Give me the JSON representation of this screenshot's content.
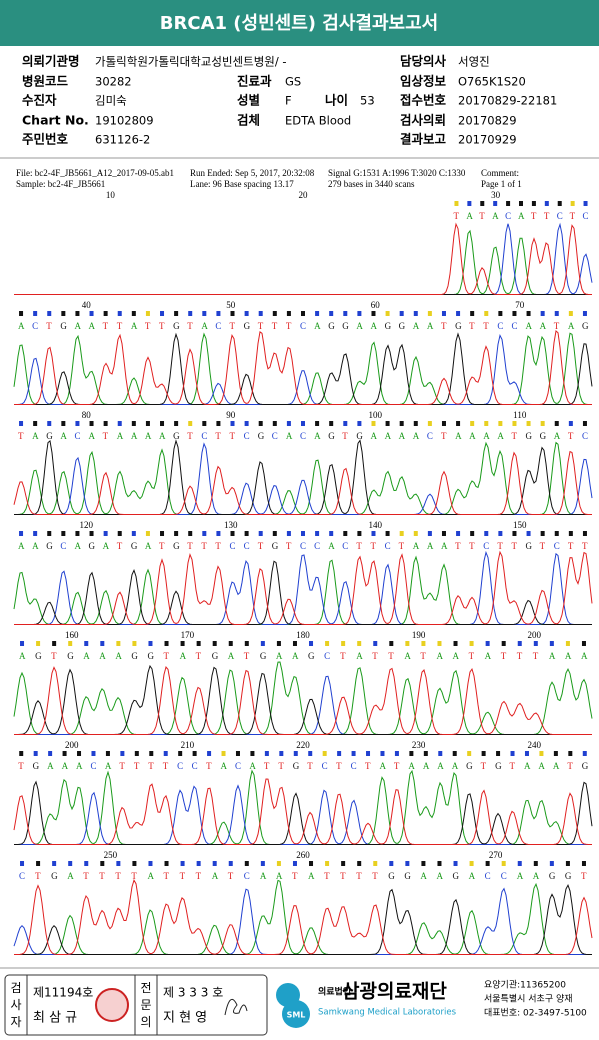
{
  "header": {
    "title": "BRCA1 (성빈센트) 검사결과보고서"
  },
  "info": [
    {
      "label": "의뢰기관명",
      "value": "가톨릭학원가톨릭대학교성빈센트병원/ -"
    },
    {
      "label": "병원코드",
      "value": "30282"
    },
    {
      "label": "진료과",
      "value": "GS"
    },
    {
      "label": "수진자",
      "value": "김미숙"
    },
    {
      "label": "성별",
      "value": "F"
    },
    {
      "label": "나이",
      "value": "53"
    },
    {
      "label": "Chart No.",
      "value": "19102809"
    },
    {
      "label": "검체",
      "value": "EDTA Blood"
    },
    {
      "label": "주민번호",
      "value": "631126-2"
    },
    {
      "label": "담당의사",
      "value": "서영진"
    },
    {
      "label": "임상정보",
      "value": "O765K1S20"
    },
    {
      "label": "접수번호",
      "value": "20170829-22181"
    },
    {
      "label": "검사의뢰",
      "value": "20170829"
    },
    {
      "label": "결과보고",
      "value": "20170929"
    }
  ],
  "chromatogram": {
    "file": "File: bc2-4F_JB5661_A12_2017-09-05.ab1",
    "sample": "Sample: bc2-4F_JB5661",
    "run_ended": "Run Ended: Sep 5, 2017, 20:32:08",
    "lane": "Lane: 96   Base spacing 13.17",
    "signal": "Signal G:1531 A:1996 T:3020 C:1330",
    "bases": "279 bases in 3440 scans",
    "comment": "Comment:",
    "page": "Page 1 of 1",
    "rows": [
      {
        "positions": [
          10,
          20,
          30
        ],
        "sequence": "TATACATTCTC"
      },
      {
        "positions": [
          40,
          50,
          60,
          70
        ],
        "sequence": "ACTGAATTATTGTACTGTTTCAGGAAGGAATGTTCCAATAG"
      },
      {
        "positions": [
          80,
          90,
          100,
          110
        ],
        "sequence": "TAGACATAAAAGTCTTCGCACAGTGAAAACTAAAATGGATC"
      },
      {
        "positions": [
          120,
          130,
          140,
          150
        ],
        "sequence": "AAGCAGATGATGTTTCCTGTCCACTTCTAAATTCTTGTCTT"
      },
      {
        "positions": [
          160,
          170,
          180,
          190,
          200
        ],
        "sequence": "AGTGAAAGGTATGATGAAGCTATTATAATATTTAAA"
      },
      {
        "positions": [
          200,
          210,
          220,
          230,
          240
        ],
        "sequence": "TGAAACATTTTCCTACATTGTCTCTATAAAAGTGTAAATG"
      },
      {
        "positions": [
          250,
          260,
          270
        ],
        "sequence": "CTGATTTTATTTATCAATATTTTGGAAGACCAAGGT"
      }
    ]
  },
  "footer": {
    "inspector": {
      "label": "검사자",
      "number": "제11194호",
      "name": "최 삼 규"
    },
    "specialist": {
      "label": "전문의",
      "number": "제 3 3 3 호",
      "name": "지 현 영"
    },
    "org": {
      "logo": "SML",
      "type": "의료법인",
      "name": "삼광의료재단",
      "english": "Samkwang Medical Laboratories",
      "code": "요양기관:11365200",
      "address": "서울특별시 서초구 양재",
      "phone": "대표번호: 02-3497-5100"
    }
  }
}
